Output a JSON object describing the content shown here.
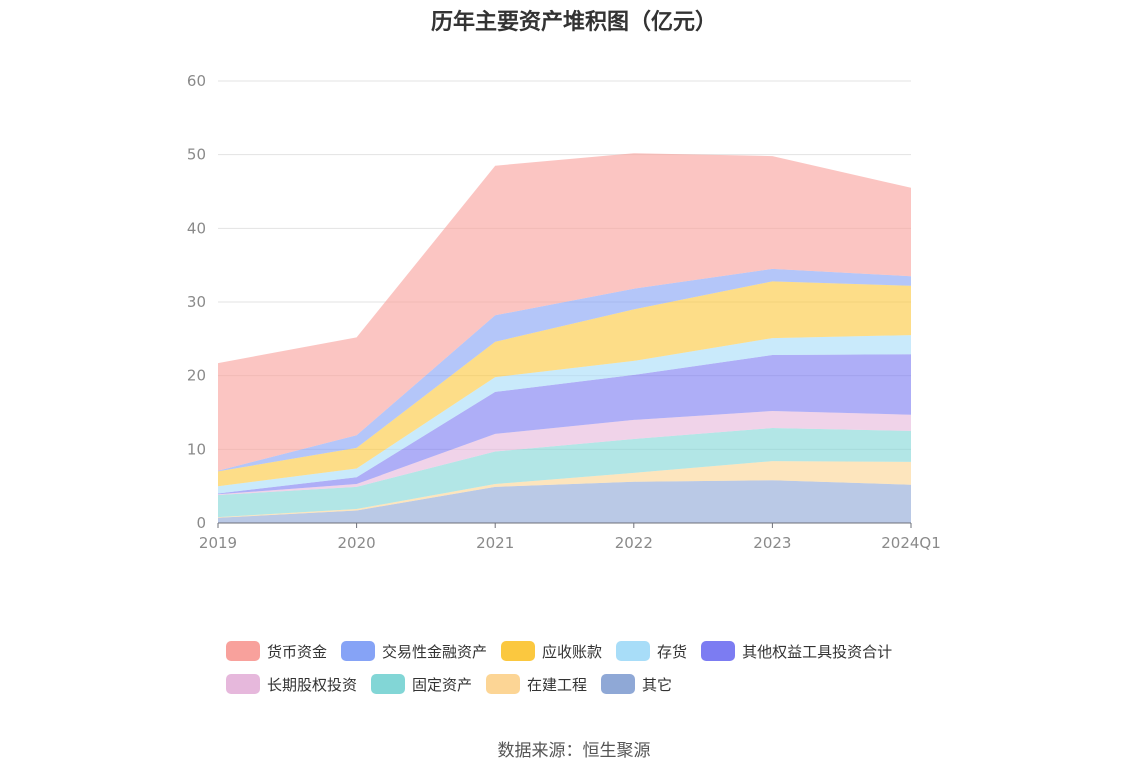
{
  "chart_data": {
    "type": "area",
    "stacked": true,
    "title": "历年主要资产堆积图（亿元）",
    "x": [
      "2019",
      "2020",
      "2021",
      "2022",
      "2023",
      "2024Q1"
    ],
    "ylim": [
      0,
      60
    ],
    "yticks": [
      "0",
      "10",
      "20",
      "30",
      "40",
      "50",
      "60"
    ],
    "grid": true,
    "legend_position": "bottom",
    "series": [
      {
        "name": "其它",
        "color": "#8fa8d6",
        "values": [
          0.7,
          1.7,
          4.9,
          5.6,
          5.8,
          5.2
        ]
      },
      {
        "name": "在建工程",
        "color": "#fcd595",
        "values": [
          0.1,
          0.2,
          0.4,
          1.2,
          2.6,
          3.1
        ]
      },
      {
        "name": "固定资产",
        "color": "#82d6d6",
        "values": [
          3.0,
          3.0,
          4.4,
          4.6,
          4.5,
          4.2
        ]
      },
      {
        "name": "长期股权投资",
        "color": "#e6b8dc",
        "values": [
          0.1,
          0.4,
          2.4,
          2.6,
          2.3,
          2.2
        ]
      },
      {
        "name": "其他权益工具投资合计",
        "color": "#7c7cf2",
        "values": [
          0.1,
          0.9,
          5.7,
          6.1,
          7.6,
          8.2
        ]
      },
      {
        "name": "存货",
        "color": "#a8ddf8",
        "values": [
          1.0,
          1.2,
          2.0,
          1.9,
          2.3,
          2.6
        ]
      },
      {
        "name": "应收账款",
        "color": "#fbc83f",
        "values": [
          2.0,
          2.8,
          4.8,
          7.0,
          7.7,
          6.7
        ]
      },
      {
        "name": "交易性金融资产",
        "color": "#86a3f6",
        "values": [
          0.1,
          1.7,
          3.6,
          2.8,
          1.7,
          1.3
        ]
      },
      {
        "name": "货币资金",
        "color": "#f8a19c",
        "values": [
          14.6,
          13.3,
          20.3,
          18.4,
          15.3,
          12.0
        ]
      }
    ]
  },
  "legend_rows": [
    [
      {
        "label": "货币资金",
        "color": "#f8a19c"
      },
      {
        "label": "交易性金融资产",
        "color": "#86a3f6"
      },
      {
        "label": "应收账款",
        "color": "#fbc83f"
      },
      {
        "label": "存货",
        "color": "#a8ddf8"
      },
      {
        "label": "其他权益工具投资合计",
        "color": "#7c7cf2"
      }
    ],
    [
      {
        "label": "长期股权投资",
        "color": "#e6b8dc"
      },
      {
        "label": "固定资产",
        "color": "#82d6d6"
      },
      {
        "label": "在建工程",
        "color": "#fcd595"
      },
      {
        "label": "其它",
        "color": "#8fa8d6"
      }
    ]
  ],
  "source": "数据来源：恒生聚源"
}
